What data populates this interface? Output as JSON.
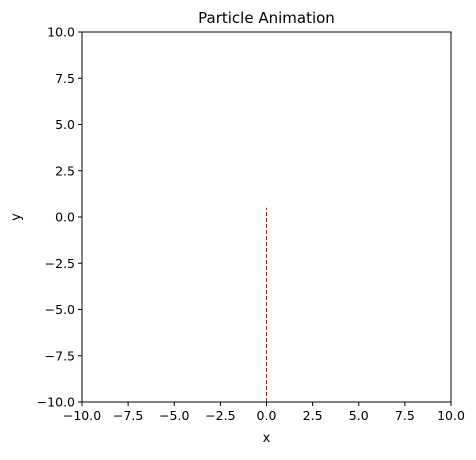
{
  "chart_data": {
    "type": "line",
    "title": "Particle Animation",
    "xlabel": "x",
    "ylabel": "y",
    "xlim": [
      -10,
      10
    ],
    "ylim": [
      -10,
      10
    ],
    "x_ticks": [
      -10,
      -7.5,
      -5,
      -2.5,
      0,
      2.5,
      5,
      7.5,
      10
    ],
    "y_ticks": [
      -10,
      -7.5,
      -5,
      -2.5,
      0,
      2.5,
      5,
      7.5,
      10
    ],
    "x_tick_labels": [
      "−10.0",
      "−7.5",
      "−5.0",
      "−2.5",
      "0.0",
      "2.5",
      "5.0",
      "7.5",
      "10.0"
    ],
    "y_tick_labels": [
      "−10.0",
      "−7.5",
      "−5.0",
      "−2.5",
      "0.0",
      "2.5",
      "5.0",
      "7.5",
      "10.0"
    ],
    "grid": false,
    "aspect": "equal",
    "series": [
      {
        "x": [
          0,
          0
        ],
        "y": [
          -10,
          0.5
        ],
        "color": "#ff0000",
        "linestyle": "dashed"
      }
    ]
  }
}
